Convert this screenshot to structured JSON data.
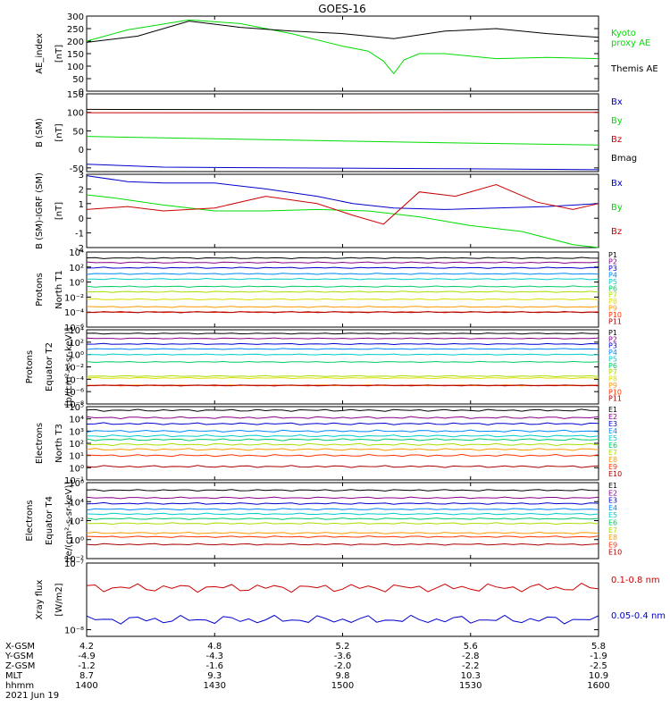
{
  "title": "GOES-16",
  "chart_data": [
    {
      "type": "line",
      "id": "ae",
      "ylabel": "AE_index\n[nT]",
      "ylim": [
        0,
        300
      ],
      "log": false,
      "ticks": [
        0,
        50,
        100,
        150,
        200,
        250,
        300
      ],
      "series": [
        {
          "name": "Kyoto\nproxy AE",
          "color": "#00dd00",
          "x": [
            0,
            0.08,
            0.2,
            0.3,
            0.4,
            0.5,
            0.55,
            0.58,
            0.6,
            0.62,
            0.65,
            0.7,
            0.8,
            0.9,
            1.0
          ],
          "y": [
            200,
            245,
            285,
            270,
            230,
            180,
            160,
            120,
            70,
            125,
            150,
            150,
            130,
            135,
            130
          ]
        },
        {
          "name": "Themis AE",
          "color": "#000000",
          "x": [
            0,
            0.1,
            0.2,
            0.3,
            0.4,
            0.5,
            0.6,
            0.7,
            0.8,
            0.9,
            1.0
          ],
          "y": [
            195,
            220,
            280,
            255,
            240,
            230,
            210,
            240,
            250,
            230,
            215
          ]
        }
      ]
    },
    {
      "type": "line",
      "id": "b",
      "ylabel": "B (SM)\n[nT]",
      "ylim": [
        -60,
        150
      ],
      "log": false,
      "ticks": [
        -50,
        0,
        50,
        100,
        150
      ],
      "series": [
        {
          "name": "Bx",
          "color": "#0000cc",
          "x": [
            0,
            0.15,
            0.4,
            0.7,
            1.0
          ],
          "y": [
            -40,
            -48,
            -50,
            -52,
            -55
          ]
        },
        {
          "name": "By",
          "color": "#00dd00",
          "x": [
            0,
            0.15,
            0.4,
            0.7,
            1.0
          ],
          "y": [
            35,
            31,
            25,
            18,
            12
          ]
        },
        {
          "name": "Bz",
          "color": "#cc0000",
          "x": [
            0,
            0.5,
            1.0
          ],
          "y": [
            99,
            99,
            100
          ]
        },
        {
          "name": "Bmag",
          "color": "#000000",
          "x": [
            0,
            0.5,
            1.0
          ],
          "y": [
            108,
            107,
            107
          ]
        }
      ]
    },
    {
      "type": "line",
      "id": "db",
      "ylabel": "B (SM)-IGRF (SM)\n[nT]",
      "ylim": [
        -2,
        3
      ],
      "log": false,
      "ticks": [
        -2,
        -1,
        0,
        1,
        2,
        3
      ],
      "series": [
        {
          "name": "Bx",
          "color": "#0000cc",
          "x": [
            0,
            0.08,
            0.15,
            0.25,
            0.35,
            0.45,
            0.52,
            0.6,
            0.7,
            0.8,
            0.9,
            1.0
          ],
          "y": [
            2.9,
            2.5,
            2.4,
            2.4,
            2.0,
            1.5,
            1.0,
            0.7,
            0.6,
            0.7,
            0.8,
            1.0
          ]
        },
        {
          "name": "By",
          "color": "#00dd00",
          "x": [
            0,
            0.05,
            0.15,
            0.25,
            0.35,
            0.45,
            0.55,
            0.65,
            0.75,
            0.85,
            0.95,
            1.0
          ],
          "y": [
            1.6,
            1.4,
            0.9,
            0.5,
            0.5,
            0.6,
            0.5,
            0.1,
            -0.5,
            -0.9,
            -1.8,
            -2.0
          ]
        },
        {
          "name": "Bz",
          "color": "#cc0000",
          "x": [
            0,
            0.08,
            0.15,
            0.25,
            0.35,
            0.45,
            0.52,
            0.58,
            0.65,
            0.72,
            0.8,
            0.88,
            0.95,
            1.0
          ],
          "y": [
            0.6,
            0.8,
            0.5,
            0.7,
            1.5,
            1.0,
            0.2,
            -0.4,
            1.8,
            1.5,
            2.3,
            1.1,
            0.6,
            1.0
          ]
        }
      ]
    },
    {
      "type": "line",
      "id": "pt1",
      "ylabel": "Protons\nNorth T1",
      "ylim": [
        -6,
        4
      ],
      "log": true,
      "ticks": [
        -6,
        -4,
        -2,
        0,
        2,
        4
      ],
      "series": [
        {
          "name": "P1",
          "color": "#000000",
          "y": 3.2
        },
        {
          "name": "P2",
          "color": "#880088",
          "y": 2.6
        },
        {
          "name": "P3",
          "color": "#0000cc",
          "y": 1.9
        },
        {
          "name": "P4",
          "color": "#0088ff",
          "y": 1.1
        },
        {
          "name": "P5",
          "color": "#00cccc",
          "y": 0.4
        },
        {
          "name": "P6",
          "color": "#00cc66",
          "y": -0.6
        },
        {
          "name": "P7",
          "color": "#aadd00",
          "y": -1.3
        },
        {
          "name": "P8",
          "color": "#dddd00",
          "y": -2.3
        },
        {
          "name": "P9",
          "color": "#ff9900",
          "y": -3.3
        },
        {
          "name": "P10",
          "color": "#ff3300",
          "y": -4.0
        },
        {
          "name": "P11",
          "color": "#aa0000",
          "y": -4.0
        }
      ]
    },
    {
      "type": "line",
      "id": "pt2",
      "ylabel": "Protons\nEquator T2\n[p/(cm²-s-sr-keV)]",
      "ylim": [
        -8,
        4
      ],
      "log": true,
      "ticks": [
        -8,
        -6,
        -4,
        -2,
        0,
        2,
        4
      ],
      "series": [
        {
          "name": "P1",
          "color": "#000000",
          "y": 3.4
        },
        {
          "name": "P2",
          "color": "#880088",
          "y": 2.6
        },
        {
          "name": "P3",
          "color": "#0000cc",
          "y": 1.7
        },
        {
          "name": "P4",
          "color": "#0088ff",
          "y": 0.9
        },
        {
          "name": "P5",
          "color": "#00cccc",
          "y": 0.0
        },
        {
          "name": "P6",
          "color": "#00cc66",
          "y": -1.2
        },
        {
          "name": "P7",
          "color": "#aadd00",
          "y": -3.5
        },
        {
          "name": "P8",
          "color": "#dddd00",
          "y": -3.8
        },
        {
          "name": "P9",
          "color": "#ff9900",
          "y": -5.0
        },
        {
          "name": "P10",
          "color": "#ff3300",
          "y": -5.0
        },
        {
          "name": "P11",
          "color": "#aa0000",
          "y": -5.0
        }
      ]
    },
    {
      "type": "line",
      "id": "et3",
      "ylabel": "Electrons\nNorth T3",
      "ylim": [
        -1,
        5
      ],
      "log": true,
      "ticks": [
        -1,
        0,
        1,
        2,
        3,
        4,
        5
      ],
      "series": [
        {
          "name": "E1",
          "color": "#000000",
          "y": 4.7
        },
        {
          "name": "E2",
          "color": "#880088",
          "y": 4.1
        },
        {
          "name": "E3",
          "color": "#0000cc",
          "y": 3.6
        },
        {
          "name": "E4",
          "color": "#0088ff",
          "y": 3.0
        },
        {
          "name": "E5",
          "color": "#00cccc",
          "y": 2.6
        },
        {
          "name": "E6",
          "color": "#00cc66",
          "y": 2.3
        },
        {
          "name": "E7",
          "color": "#aadd00",
          "y": 1.9
        },
        {
          "name": "E8",
          "color": "#ff9900",
          "y": 1.5
        },
        {
          "name": "E9",
          "color": "#ff3300",
          "y": 1.0
        },
        {
          "name": "E10",
          "color": "#aa0000",
          "y": 0.1
        }
      ]
    },
    {
      "type": "line",
      "id": "et4",
      "ylabel": "Electrons\nEquator T4\n[e/(cm²-s-sr-keV)]",
      "ylim": [
        -2,
        6
      ],
      "log": true,
      "ticks": [
        -2,
        0,
        2,
        4,
        6
      ],
      "series": [
        {
          "name": "E1",
          "color": "#000000",
          "y": 5.2
        },
        {
          "name": "E2",
          "color": "#880088",
          "y": 4.4
        },
        {
          "name": "E3",
          "color": "#0000cc",
          "y": 3.8
        },
        {
          "name": "E4",
          "color": "#0088ff",
          "y": 3.2
        },
        {
          "name": "E5",
          "color": "#00cccc",
          "y": 2.7
        },
        {
          "name": "E6",
          "color": "#00cc66",
          "y": 2.2
        },
        {
          "name": "E7",
          "color": "#aadd00",
          "y": 1.7
        },
        {
          "name": "E8",
          "color": "#ff9900",
          "y": 0.7
        },
        {
          "name": "E9",
          "color": "#ff3300",
          "y": 0.3
        },
        {
          "name": "E10",
          "color": "#aa0000",
          "y": -0.5
        }
      ]
    },
    {
      "type": "line",
      "id": "xray",
      "ylabel": "Xray flux\n[W/m2]",
      "ylim": [
        -8.1,
        -7.0
      ],
      "log": true,
      "ticks": [
        -8,
        -7
      ],
      "series": [
        {
          "name": "0.1-0.8 nm",
          "color": "#cc0000",
          "y": -7.37
        },
        {
          "name": "0.05-0.4 nm",
          "color": "#0000cc",
          "y": -7.85
        }
      ]
    }
  ],
  "x_axis": {
    "ticks": [
      "4.2",
      "4.8",
      "5.2",
      "5.6",
      "5.8"
    ],
    "rows": [
      {
        "label": "X-GSM",
        "values": [
          "4.2",
          "4.8",
          "5.2",
          "5.6",
          "5.8"
        ]
      },
      {
        "label": "Y-GSM",
        "values": [
          "-4.9",
          "-4.3",
          "-3.6",
          "-2.8",
          "-1.9"
        ]
      },
      {
        "label": "Z-GSM",
        "values": [
          "-1.2",
          "-1.6",
          "-2.0",
          "-2.2",
          "-2.5"
        ]
      },
      {
        "label": "MLT",
        "values": [
          "8.7",
          "9.3",
          "9.8",
          "10.3",
          "10.9"
        ]
      },
      {
        "label": "hhmm",
        "values": [
          "1400",
          "1430",
          "1500",
          "1530",
          "1600"
        ]
      }
    ],
    "date": "2021 Jun 19"
  }
}
